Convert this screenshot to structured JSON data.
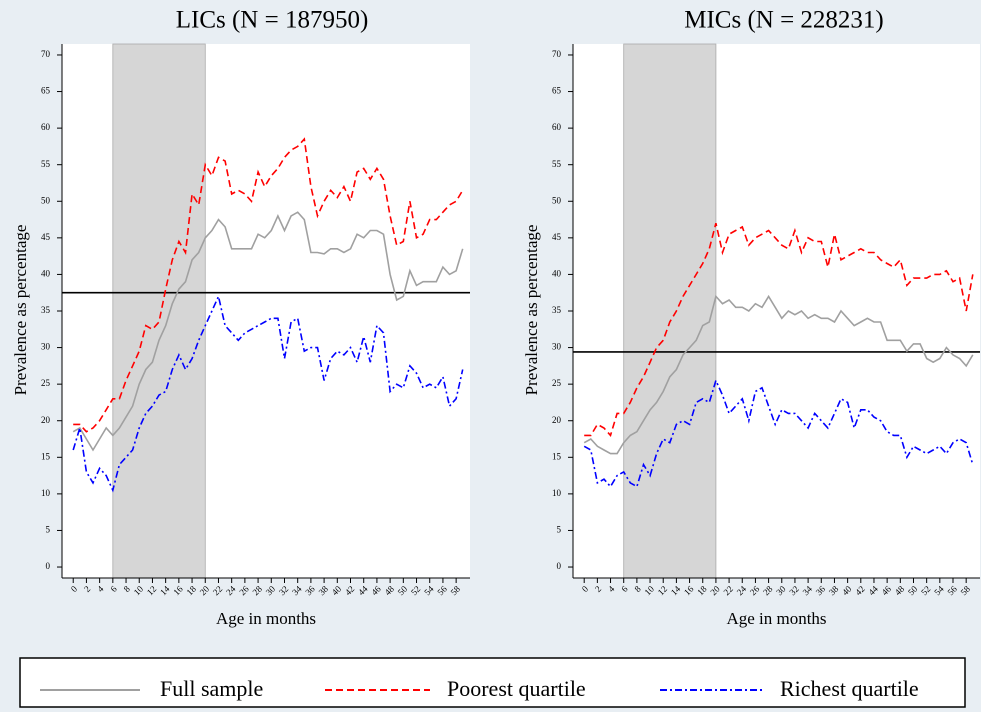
{
  "chart_data": [
    {
      "type": "line",
      "title": "LICs (N = 187950)",
      "y_label": "Prevalence as percentage",
      "x_label": "Age in months",
      "x": [
        0,
        1,
        2,
        3,
        4,
        5,
        6,
        7,
        8,
        9,
        10,
        11,
        12,
        13,
        14,
        15,
        16,
        17,
        18,
        19,
        20,
        21,
        22,
        23,
        24,
        25,
        26,
        27,
        28,
        29,
        30,
        31,
        32,
        33,
        34,
        35,
        36,
        37,
        38,
        39,
        40,
        41,
        42,
        43,
        44,
        45,
        46,
        47,
        48,
        49,
        50,
        51,
        52,
        53,
        54,
        55,
        56,
        57,
        58,
        59
      ],
      "xlim": [
        -1.7,
        60.1
      ],
      "xticks": [
        0,
        2,
        4,
        6,
        8,
        10,
        12,
        14,
        16,
        18,
        20,
        22,
        24,
        26,
        28,
        30,
        32,
        34,
        36,
        38,
        40,
        42,
        44,
        46,
        48,
        50,
        52,
        54,
        56,
        58
      ],
      "ylim": [
        -1.5,
        71.5
      ],
      "yticks": [
        0,
        5,
        10,
        15,
        20,
        25,
        30,
        35,
        40,
        45,
        50,
        55,
        60,
        65,
        70
      ],
      "reference_line": 37.5,
      "shaded_x": [
        6,
        20
      ],
      "series": [
        {
          "name": "Full sample",
          "color": "#a0a0a0",
          "style": "solid",
          "values": [
            18.5,
            19,
            17.5,
            16,
            17.5,
            19,
            18,
            19,
            20.5,
            22,
            25,
            27,
            28,
            31,
            33,
            36,
            38,
            39,
            42,
            43,
            45,
            46,
            47.5,
            46.5,
            43.5,
            43.5,
            43.5,
            43.5,
            45.5,
            45,
            46,
            48,
            46,
            48,
            48.5,
            47.5,
            43,
            43,
            42.8,
            43.5,
            43.5,
            43,
            43.5,
            45.5,
            45,
            46,
            46,
            45.5,
            40,
            36.5,
            37,
            40.5,
            38.5,
            39,
            39,
            39,
            41,
            40,
            40.5,
            43.5
          ]
        },
        {
          "name": "Poorest quartile",
          "color": "#ff0000",
          "style": "dashed",
          "values": [
            19.5,
            19.5,
            18.5,
            19,
            20,
            21.5,
            23,
            23,
            25.5,
            27.5,
            29.5,
            33,
            32.5,
            33.5,
            38,
            42,
            44.5,
            43,
            51,
            49.5,
            55,
            53.5,
            56,
            55.5,
            51,
            51.5,
            51,
            50,
            54,
            52,
            53.5,
            54.5,
            56,
            57,
            57.5,
            58.5,
            52,
            48,
            50,
            51.5,
            50.5,
            52,
            50,
            54,
            54.5,
            53,
            54.5,
            53,
            48,
            44,
            44.5,
            50,
            45,
            45.5,
            47.5,
            47.5,
            48.5,
            49.5,
            50,
            51.5
          ]
        },
        {
          "name": "Richest quartile",
          "color": "#0000ff",
          "style": "dashdot",
          "values": [
            16,
            19,
            13,
            11.5,
            13.5,
            12.5,
            10.5,
            14,
            15,
            16,
            19,
            21,
            22,
            23.5,
            24,
            27,
            29,
            27,
            28.5,
            31,
            33,
            35,
            37,
            33,
            32,
            31,
            32,
            32.5,
            33,
            33.5,
            34,
            34,
            28.5,
            33.5,
            34,
            29.5,
            30,
            30,
            25.5,
            28.5,
            29.5,
            29,
            30,
            28,
            31.5,
            28,
            33,
            32,
            24,
            25,
            24.5,
            27.5,
            26.5,
            24.5,
            25,
            24.5,
            26,
            22,
            23,
            27
          ]
        }
      ]
    },
    {
      "type": "line",
      "title": "MICs (N = 228231)",
      "y_label": "Prevalence as percentage",
      "x_label": "Age in months",
      "x": [
        0,
        1,
        2,
        3,
        4,
        5,
        6,
        7,
        8,
        9,
        10,
        11,
        12,
        13,
        14,
        15,
        16,
        17,
        18,
        19,
        20,
        21,
        22,
        23,
        24,
        25,
        26,
        27,
        28,
        29,
        30,
        31,
        32,
        33,
        34,
        35,
        36,
        37,
        38,
        39,
        40,
        41,
        42,
        43,
        44,
        45,
        46,
        47,
        48,
        49,
        50,
        51,
        52,
        53,
        54,
        55,
        56,
        57,
        58,
        59
      ],
      "xlim": [
        -1.7,
        60.1
      ],
      "xticks": [
        0,
        2,
        4,
        6,
        8,
        10,
        12,
        14,
        16,
        18,
        20,
        22,
        24,
        26,
        28,
        30,
        32,
        34,
        36,
        38,
        40,
        42,
        44,
        46,
        48,
        50,
        52,
        54,
        56,
        58
      ],
      "ylim": [
        -1.5,
        71.5
      ],
      "yticks": [
        0,
        5,
        10,
        15,
        20,
        25,
        30,
        35,
        40,
        45,
        50,
        55,
        60,
        65,
        70
      ],
      "reference_line": 29.4,
      "shaded_x": [
        6,
        20
      ],
      "series": [
        {
          "color": "#a0a0a0",
          "style": "solid",
          "values": [
            17,
            17.5,
            16.5,
            16,
            15.5,
            15.5,
            17,
            18,
            18.5,
            20,
            21.5,
            22.5,
            24,
            26,
            27,
            29,
            30,
            31,
            33,
            33.5,
            37,
            36,
            36.5,
            35.5,
            35.5,
            35,
            36,
            35.5,
            37,
            35.5,
            34,
            35,
            34.5,
            35,
            34,
            34.5,
            34,
            34,
            33.5,
            35,
            34,
            33,
            33.5,
            34,
            33.5,
            33.5,
            31,
            31,
            31,
            29.5,
            30.5,
            30.5,
            28.5,
            28,
            28.5,
            30,
            29,
            28.5,
            27.5,
            29
          ]
        },
        {
          "color": "#ff0000",
          "style": "dashed",
          "values": [
            18,
            18,
            19.5,
            19,
            18,
            21,
            21,
            22.5,
            24.5,
            26,
            28,
            30,
            31,
            33.5,
            35,
            37,
            38.5,
            40,
            41.5,
            43.5,
            47,
            43,
            45.5,
            46,
            46.5,
            44,
            45,
            45.5,
            46,
            45,
            44,
            43.5,
            46,
            43,
            45,
            44.5,
            44.5,
            41,
            45.5,
            42,
            42.5,
            43,
            43.5,
            43,
            43,
            42,
            41.5,
            41,
            42,
            38.5,
            39.5,
            39.5,
            39.5,
            40,
            40,
            40.5,
            39,
            39.5,
            35,
            40
          ]
        },
        {
          "color": "#0000ff",
          "style": "dashdot",
          "values": [
            16.5,
            16,
            11.5,
            12,
            11,
            12.5,
            13,
            11.5,
            11,
            14,
            12.5,
            15.5,
            17.5,
            17,
            19.5,
            20,
            19.5,
            22.5,
            23,
            22.5,
            25.5,
            23.5,
            21,
            22,
            23,
            20,
            24,
            24.5,
            22,
            19.5,
            21.5,
            21,
            21,
            20,
            19,
            21,
            20,
            19,
            21,
            23,
            22.5,
            19,
            21.5,
            21.5,
            20.5,
            20,
            18.5,
            18,
            18,
            15,
            16.5,
            16,
            15.5,
            16,
            16.5,
            15.5,
            17,
            17.5,
            17,
            14
          ]
        }
      ]
    }
  ]
}
